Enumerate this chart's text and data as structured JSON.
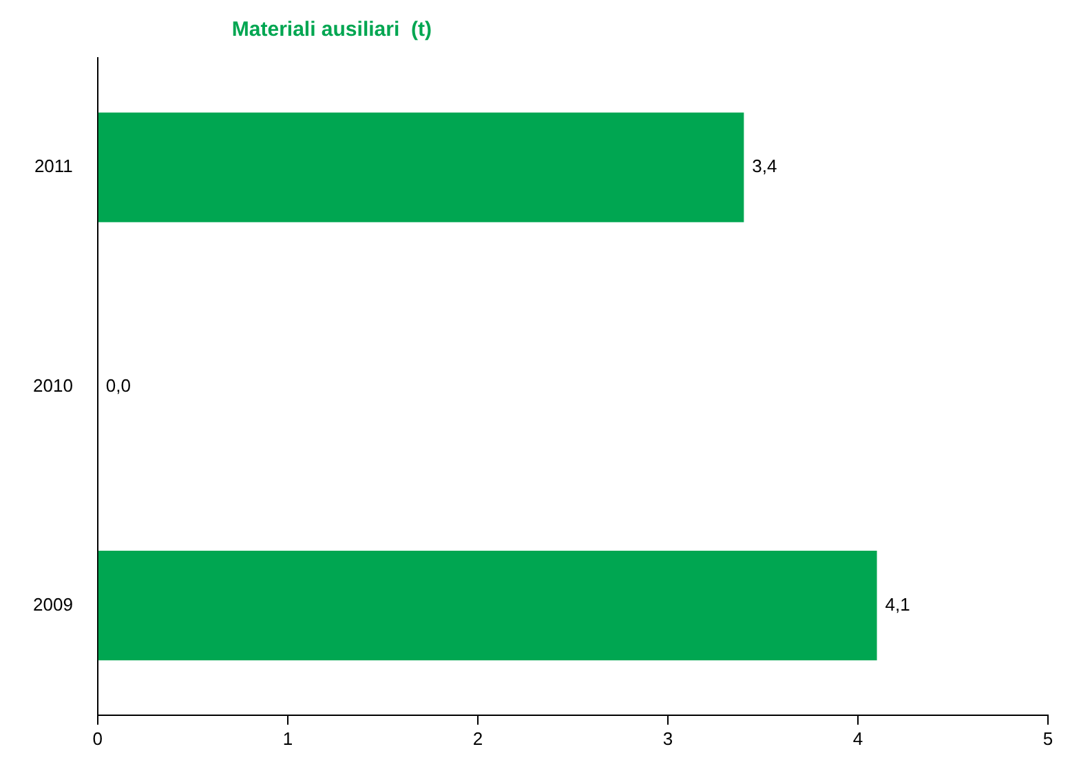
{
  "chart_data": {
    "type": "bar",
    "orientation": "horizontal",
    "title": "Materiali ausiliari  (t)",
    "categories": [
      "2011",
      "2010",
      "2009"
    ],
    "values": [
      3.4,
      0,
      4.1
    ],
    "value_labels": [
      "3,4",
      "0,0",
      "4,1"
    ],
    "color": "#00a651",
    "xlim": [
      0,
      5
    ],
    "xticks": [
      0,
      1,
      2,
      3,
      4,
      5
    ],
    "legend": false
  }
}
